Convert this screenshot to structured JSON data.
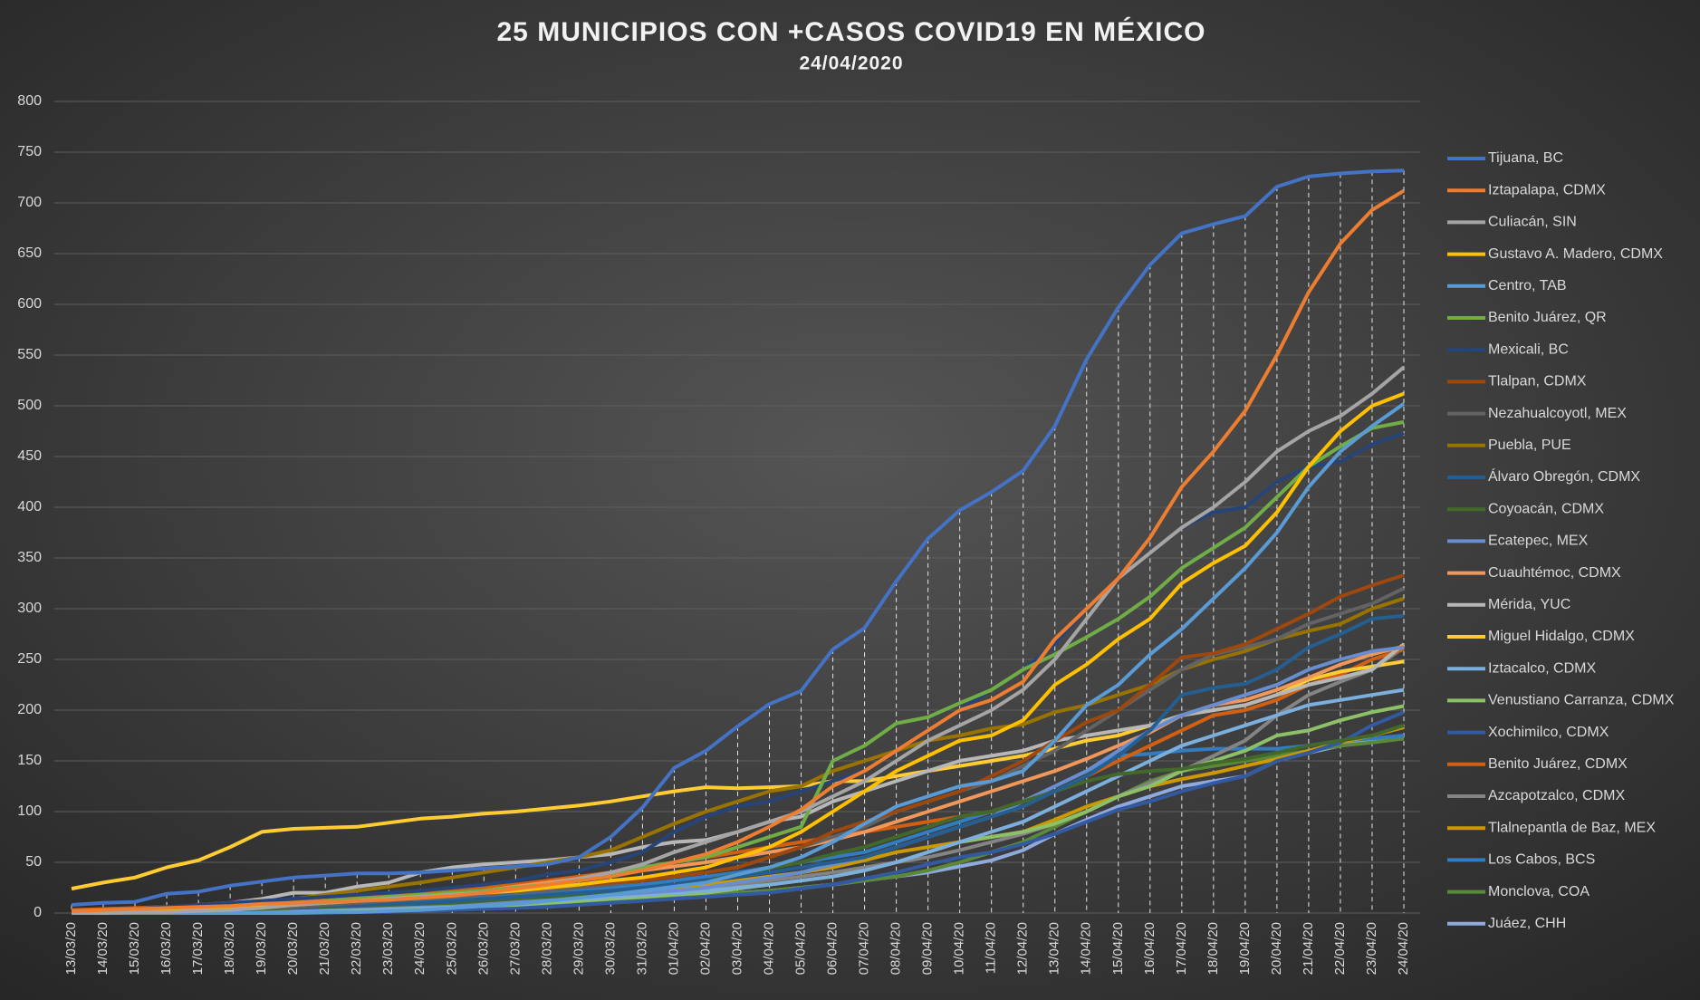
{
  "chart_data": {
    "type": "line",
    "title": "25 MUNICIPIOS CON +CASOS COVID19 EN MÉXICO",
    "subtitle": "24/04/2020",
    "categories": [
      "13/03/20",
      "14/03/20",
      "15/03/20",
      "16/03/20",
      "17/03/20",
      "18/03/20",
      "19/03/20",
      "20/03/20",
      "21/03/20",
      "22/03/20",
      "23/03/20",
      "24/03/20",
      "25/03/20",
      "26/03/20",
      "27/03/20",
      "28/03/20",
      "29/03/20",
      "30/03/20",
      "31/03/20",
      "01/04/20",
      "02/04/20",
      "03/04/20",
      "04/04/20",
      "05/04/20",
      "06/04/20",
      "07/04/20",
      "08/04/20",
      "09/04/20",
      "10/04/20",
      "11/04/20",
      "12/04/20",
      "13/04/20",
      "14/04/20",
      "15/04/20",
      "16/04/20",
      "17/04/20",
      "18/04/20",
      "19/04/20",
      "20/04/20",
      "21/04/20",
      "22/04/20",
      "23/04/20",
      "24/04/20"
    ],
    "ylim": [
      0,
      800
    ],
    "yticks": [
      0,
      50,
      100,
      150,
      200,
      250,
      300,
      350,
      400,
      450,
      500,
      550,
      600,
      650,
      700,
      750,
      800
    ],
    "grid": true,
    "drop_lines": true,
    "legend": "right",
    "series": [
      {
        "name": "Tijuana, BC",
        "color": "#4472c4",
        "values": [
          8,
          10,
          11,
          19,
          21,
          27,
          31,
          35,
          37,
          39,
          39,
          40,
          42,
          44,
          46,
          48,
          55,
          75,
          104,
          143,
          160,
          184,
          206,
          219,
          260,
          281,
          327,
          369,
          397,
          415,
          436,
          480,
          546,
          597,
          639,
          670,
          679,
          687,
          716,
          726,
          729,
          731,
          732
        ]
      },
      {
        "name": "Iztapalapa, CDMX",
        "color": "#ed7d31",
        "values": [
          2,
          3,
          4,
          5,
          6,
          7,
          9,
          10,
          11,
          12,
          13,
          15,
          17,
          20,
          24,
          28,
          32,
          36,
          42,
          50,
          58,
          70,
          85,
          102,
          125,
          140,
          160,
          180,
          200,
          210,
          228,
          270,
          300,
          330,
          370,
          420,
          455,
          495,
          550,
          612,
          660,
          693,
          712
        ]
      },
      {
        "name": "Culiacán, SIN",
        "color": "#a5a5a5",
        "values": [
          0,
          0,
          1,
          1,
          2,
          3,
          5,
          8,
          10,
          12,
          14,
          16,
          18,
          20,
          24,
          28,
          34,
          40,
          48,
          60,
          70,
          80,
          90,
          100,
          115,
          130,
          150,
          170,
          185,
          200,
          220,
          250,
          290,
          330,
          355,
          380,
          400,
          425,
          455,
          475,
          490,
          512,
          538
        ]
      },
      {
        "name": "Gustavo A. Madero, CDMX",
        "color": "#ffc000",
        "values": [
          1,
          2,
          3,
          4,
          5,
          6,
          7,
          8,
          10,
          12,
          14,
          16,
          18,
          20,
          22,
          25,
          28,
          32,
          35,
          40,
          45,
          55,
          65,
          80,
          100,
          120,
          140,
          155,
          170,
          175,
          190,
          225,
          245,
          270,
          290,
          325,
          345,
          362,
          395,
          440,
          475,
          500,
          512
        ]
      },
      {
        "name": "Centro, TAB",
        "color": "#5b9bd5",
        "values": [
          0,
          0,
          0,
          0,
          0,
          0,
          0,
          0,
          1,
          1,
          2,
          3,
          5,
          7,
          9,
          12,
          15,
          18,
          22,
          26,
          30,
          38,
          45,
          55,
          70,
          88,
          105,
          115,
          125,
          130,
          140,
          170,
          205,
          225,
          255,
          280,
          310,
          340,
          375,
          420,
          455,
          480,
          502
        ]
      },
      {
        "name": "Benito Juárez, QR",
        "color": "#70ad47",
        "values": [
          1,
          2,
          3,
          4,
          5,
          6,
          8,
          10,
          12,
          14,
          16,
          18,
          20,
          22,
          25,
          28,
          32,
          38,
          45,
          50,
          55,
          65,
          75,
          85,
          150,
          165,
          187,
          193,
          207,
          220,
          240,
          255,
          272,
          290,
          312,
          340,
          360,
          380,
          410,
          440,
          460,
          478,
          484
        ]
      },
      {
        "name": "Mexicali, BC",
        "color": "#264478",
        "values": [
          2,
          3,
          4,
          6,
          8,
          10,
          12,
          14,
          16,
          18,
          20,
          22,
          25,
          28,
          32,
          38,
          42,
          50,
          60,
          80,
          95,
          105,
          110,
          120,
          130,
          140,
          160,
          180,
          200,
          220,
          240,
          265,
          300,
          330,
          355,
          380,
          395,
          400,
          425,
          440,
          445,
          462,
          473
        ]
      },
      {
        "name": "Tlalpan, CDMX",
        "color": "#9e480e",
        "values": [
          1,
          1,
          2,
          3,
          4,
          5,
          6,
          8,
          10,
          12,
          14,
          16,
          18,
          20,
          22,
          25,
          28,
          30,
          32,
          36,
          40,
          45,
          55,
          65,
          80,
          90,
          100,
          110,
          120,
          135,
          150,
          170,
          188,
          200,
          225,
          252,
          256,
          265,
          280,
          295,
          312,
          323,
          333
        ]
      },
      {
        "name": "Nezahualcoyotl, MEX",
        "color": "#636363",
        "values": [
          0,
          1,
          1,
          2,
          3,
          4,
          5,
          6,
          8,
          10,
          12,
          14,
          16,
          18,
          20,
          22,
          25,
          28,
          32,
          36,
          40,
          45,
          55,
          65,
          75,
          85,
          100,
          110,
          120,
          130,
          145,
          160,
          180,
          200,
          220,
          240,
          255,
          262,
          270,
          285,
          295,
          305,
          320
        ]
      },
      {
        "name": "Puebla, PUE",
        "color": "#997300",
        "values": [
          0,
          1,
          2,
          3,
          5,
          7,
          10,
          14,
          18,
          22,
          26,
          30,
          35,
          40,
          45,
          50,
          55,
          62,
          75,
          88,
          100,
          110,
          120,
          125,
          140,
          150,
          160,
          170,
          175,
          182,
          186,
          198,
          205,
          215,
          225,
          240,
          250,
          258,
          270,
          278,
          285,
          300,
          310
        ]
      },
      {
        "name": "Álvaro Obregón, CDMX",
        "color": "#255e91",
        "values": [
          0,
          1,
          1,
          2,
          3,
          4,
          5,
          6,
          7,
          8,
          9,
          10,
          12,
          14,
          16,
          18,
          20,
          22,
          25,
          28,
          32,
          36,
          40,
          45,
          50,
          55,
          65,
          75,
          85,
          95,
          105,
          120,
          135,
          155,
          180,
          215,
          222,
          226,
          240,
          262,
          275,
          290,
          293
        ]
      },
      {
        "name": "Coyoacán, CDMX",
        "color": "#43682b",
        "values": [
          0,
          0,
          1,
          1,
          2,
          3,
          4,
          5,
          6,
          7,
          8,
          9,
          10,
          12,
          14,
          16,
          18,
          20,
          24,
          28,
          32,
          38,
          44,
          50,
          58,
          65,
          75,
          85,
          95,
          100,
          110,
          120,
          130,
          137,
          140,
          142,
          148,
          152,
          158,
          165,
          170,
          175,
          185
        ]
      },
      {
        "name": "Ecatepec, MEX",
        "color": "#698ed0",
        "values": [
          0,
          0,
          0,
          1,
          1,
          2,
          3,
          4,
          5,
          6,
          7,
          8,
          9,
          10,
          12,
          14,
          16,
          18,
          20,
          22,
          25,
          30,
          35,
          40,
          48,
          55,
          65,
          75,
          85,
          95,
          110,
          125,
          140,
          160,
          180,
          195,
          205,
          215,
          225,
          240,
          250,
          258,
          262
        ]
      },
      {
        "name": "Cuauhtémoc, CDMX",
        "color": "#f1975a",
        "values": [
          2,
          3,
          4,
          5,
          6,
          7,
          8,
          10,
          12,
          14,
          15,
          16,
          18,
          22,
          26,
          30,
          34,
          38,
          42,
          46,
          50,
          55,
          60,
          65,
          72,
          80,
          90,
          100,
          110,
          120,
          130,
          140,
          152,
          165,
          178,
          195,
          205,
          210,
          220,
          232,
          245,
          255,
          263
        ]
      },
      {
        "name": "Mérida, YUC",
        "color": "#b7b7b7",
        "values": [
          0,
          0,
          2,
          4,
          8,
          10,
          14,
          20,
          20,
          26,
          30,
          40,
          45,
          48,
          50,
          52,
          55,
          58,
          65,
          70,
          72,
          80,
          90,
          95,
          110,
          120,
          130,
          140,
          150,
          155,
          160,
          170,
          175,
          180,
          185,
          195,
          200,
          205,
          215,
          225,
          232,
          240,
          265
        ]
      },
      {
        "name": "Miguel Hidalgo, CDMX",
        "color": "#ffcd33",
        "values": [
          24,
          30,
          35,
          45,
          52,
          65,
          80,
          83,
          84,
          85,
          89,
          93,
          95,
          98,
          100,
          103,
          106,
          110,
          115,
          120,
          124,
          123,
          124,
          125,
          130,
          130,
          135,
          140,
          145,
          150,
          155,
          162,
          170,
          175,
          185,
          195,
          200,
          205,
          215,
          230,
          238,
          243,
          248
        ]
      },
      {
        "name": "Iztacalco, CDMX",
        "color": "#7cafdd",
        "values": [
          0,
          0,
          0,
          0,
          1,
          1,
          2,
          3,
          4,
          5,
          6,
          7,
          8,
          9,
          10,
          12,
          14,
          16,
          18,
          20,
          22,
          25,
          28,
          32,
          36,
          42,
          50,
          60,
          70,
          80,
          90,
          105,
          120,
          135,
          150,
          165,
          175,
          185,
          195,
          205,
          210,
          215,
          220
        ]
      },
      {
        "name": "Venustiano Carranza, CDMX",
        "color": "#8cc168",
        "values": [
          0,
          0,
          0,
          0,
          0,
          0,
          0,
          1,
          2,
          3,
          4,
          5,
          6,
          7,
          8,
          10,
          12,
          14,
          16,
          18,
          20,
          24,
          28,
          32,
          36,
          42,
          50,
          60,
          70,
          75,
          80,
          88,
          100,
          115,
          125,
          140,
          150,
          160,
          175,
          180,
          190,
          198,
          204
        ]
      },
      {
        "name": "Xochimilco, CDMX",
        "color": "#335aa1",
        "values": [
          0,
          0,
          0,
          0,
          0,
          0,
          0,
          0,
          0,
          1,
          1,
          2,
          3,
          4,
          5,
          6,
          8,
          10,
          12,
          14,
          16,
          18,
          20,
          24,
          28,
          34,
          40,
          48,
          55,
          60,
          68,
          78,
          90,
          102,
          110,
          120,
          128,
          135,
          150,
          158,
          168,
          185,
          198
        ]
      },
      {
        "name": "Benito Juárez, CDMX",
        "color": "#d26012",
        "values": [
          3,
          4,
          5,
          6,
          7,
          8,
          10,
          12,
          14,
          16,
          18,
          20,
          22,
          25,
          28,
          32,
          36,
          40,
          45,
          50,
          55,
          60,
          65,
          70,
          75,
          80,
          85,
          90,
          95,
          100,
          110,
          120,
          135,
          150,
          165,
          180,
          195,
          200,
          210,
          225,
          235,
          250,
          260
        ]
      },
      {
        "name": "Azcapotzalco, CDMX",
        "color": "#848484",
        "values": [
          0,
          0,
          0,
          1,
          1,
          2,
          3,
          4,
          5,
          6,
          7,
          8,
          9,
          10,
          12,
          14,
          16,
          18,
          20,
          22,
          25,
          28,
          32,
          36,
          40,
          45,
          50,
          55,
          62,
          70,
          78,
          88,
          100,
          115,
          128,
          140,
          155,
          170,
          195,
          215,
          228,
          240,
          262
        ]
      },
      {
        "name": "Tlalnepantla de Baz, MEX",
        "color": "#cc9a00",
        "values": [
          0,
          0,
          0,
          1,
          1,
          2,
          3,
          4,
          5,
          6,
          7,
          8,
          10,
          12,
          14,
          16,
          18,
          20,
          22,
          25,
          28,
          32,
          36,
          40,
          45,
          52,
          60,
          65,
          70,
          75,
          80,
          92,
          105,
          115,
          125,
          132,
          138,
          145,
          152,
          160,
          168,
          175,
          183
        ]
      },
      {
        "name": "Los Cabos, BCS",
        "color": "#327dc2",
        "values": [
          0,
          0,
          0,
          0,
          1,
          1,
          2,
          3,
          5,
          8,
          10,
          12,
          14,
          16,
          18,
          20,
          22,
          25,
          28,
          32,
          36,
          40,
          45,
          50,
          55,
          60,
          70,
          80,
          90,
          100,
          110,
          125,
          140,
          155,
          157,
          160,
          162,
          162,
          162,
          165,
          170,
          172,
          175
        ]
      },
      {
        "name": "Monclova, COA",
        "color": "#5a8a39",
        "values": [
          0,
          0,
          0,
          0,
          0,
          0,
          0,
          1,
          1,
          2,
          3,
          4,
          5,
          6,
          7,
          8,
          10,
          12,
          14,
          16,
          18,
          20,
          22,
          25,
          28,
          32,
          36,
          42,
          50,
          60,
          70,
          85,
          100,
          115,
          130,
          140,
          145,
          150,
          155,
          160,
          165,
          168,
          172
        ]
      },
      {
        "name": "Juáez, CHH",
        "color": "#8faadc",
        "values": [
          0,
          0,
          0,
          0,
          0,
          0,
          0,
          0,
          1,
          1,
          2,
          3,
          4,
          5,
          6,
          8,
          10,
          12,
          14,
          16,
          18,
          20,
          22,
          25,
          28,
          32,
          36,
          40,
          46,
          52,
          62,
          78,
          92,
          105,
          115,
          125,
          130,
          135,
          150,
          158,
          165,
          170,
          174
        ]
      }
    ]
  }
}
